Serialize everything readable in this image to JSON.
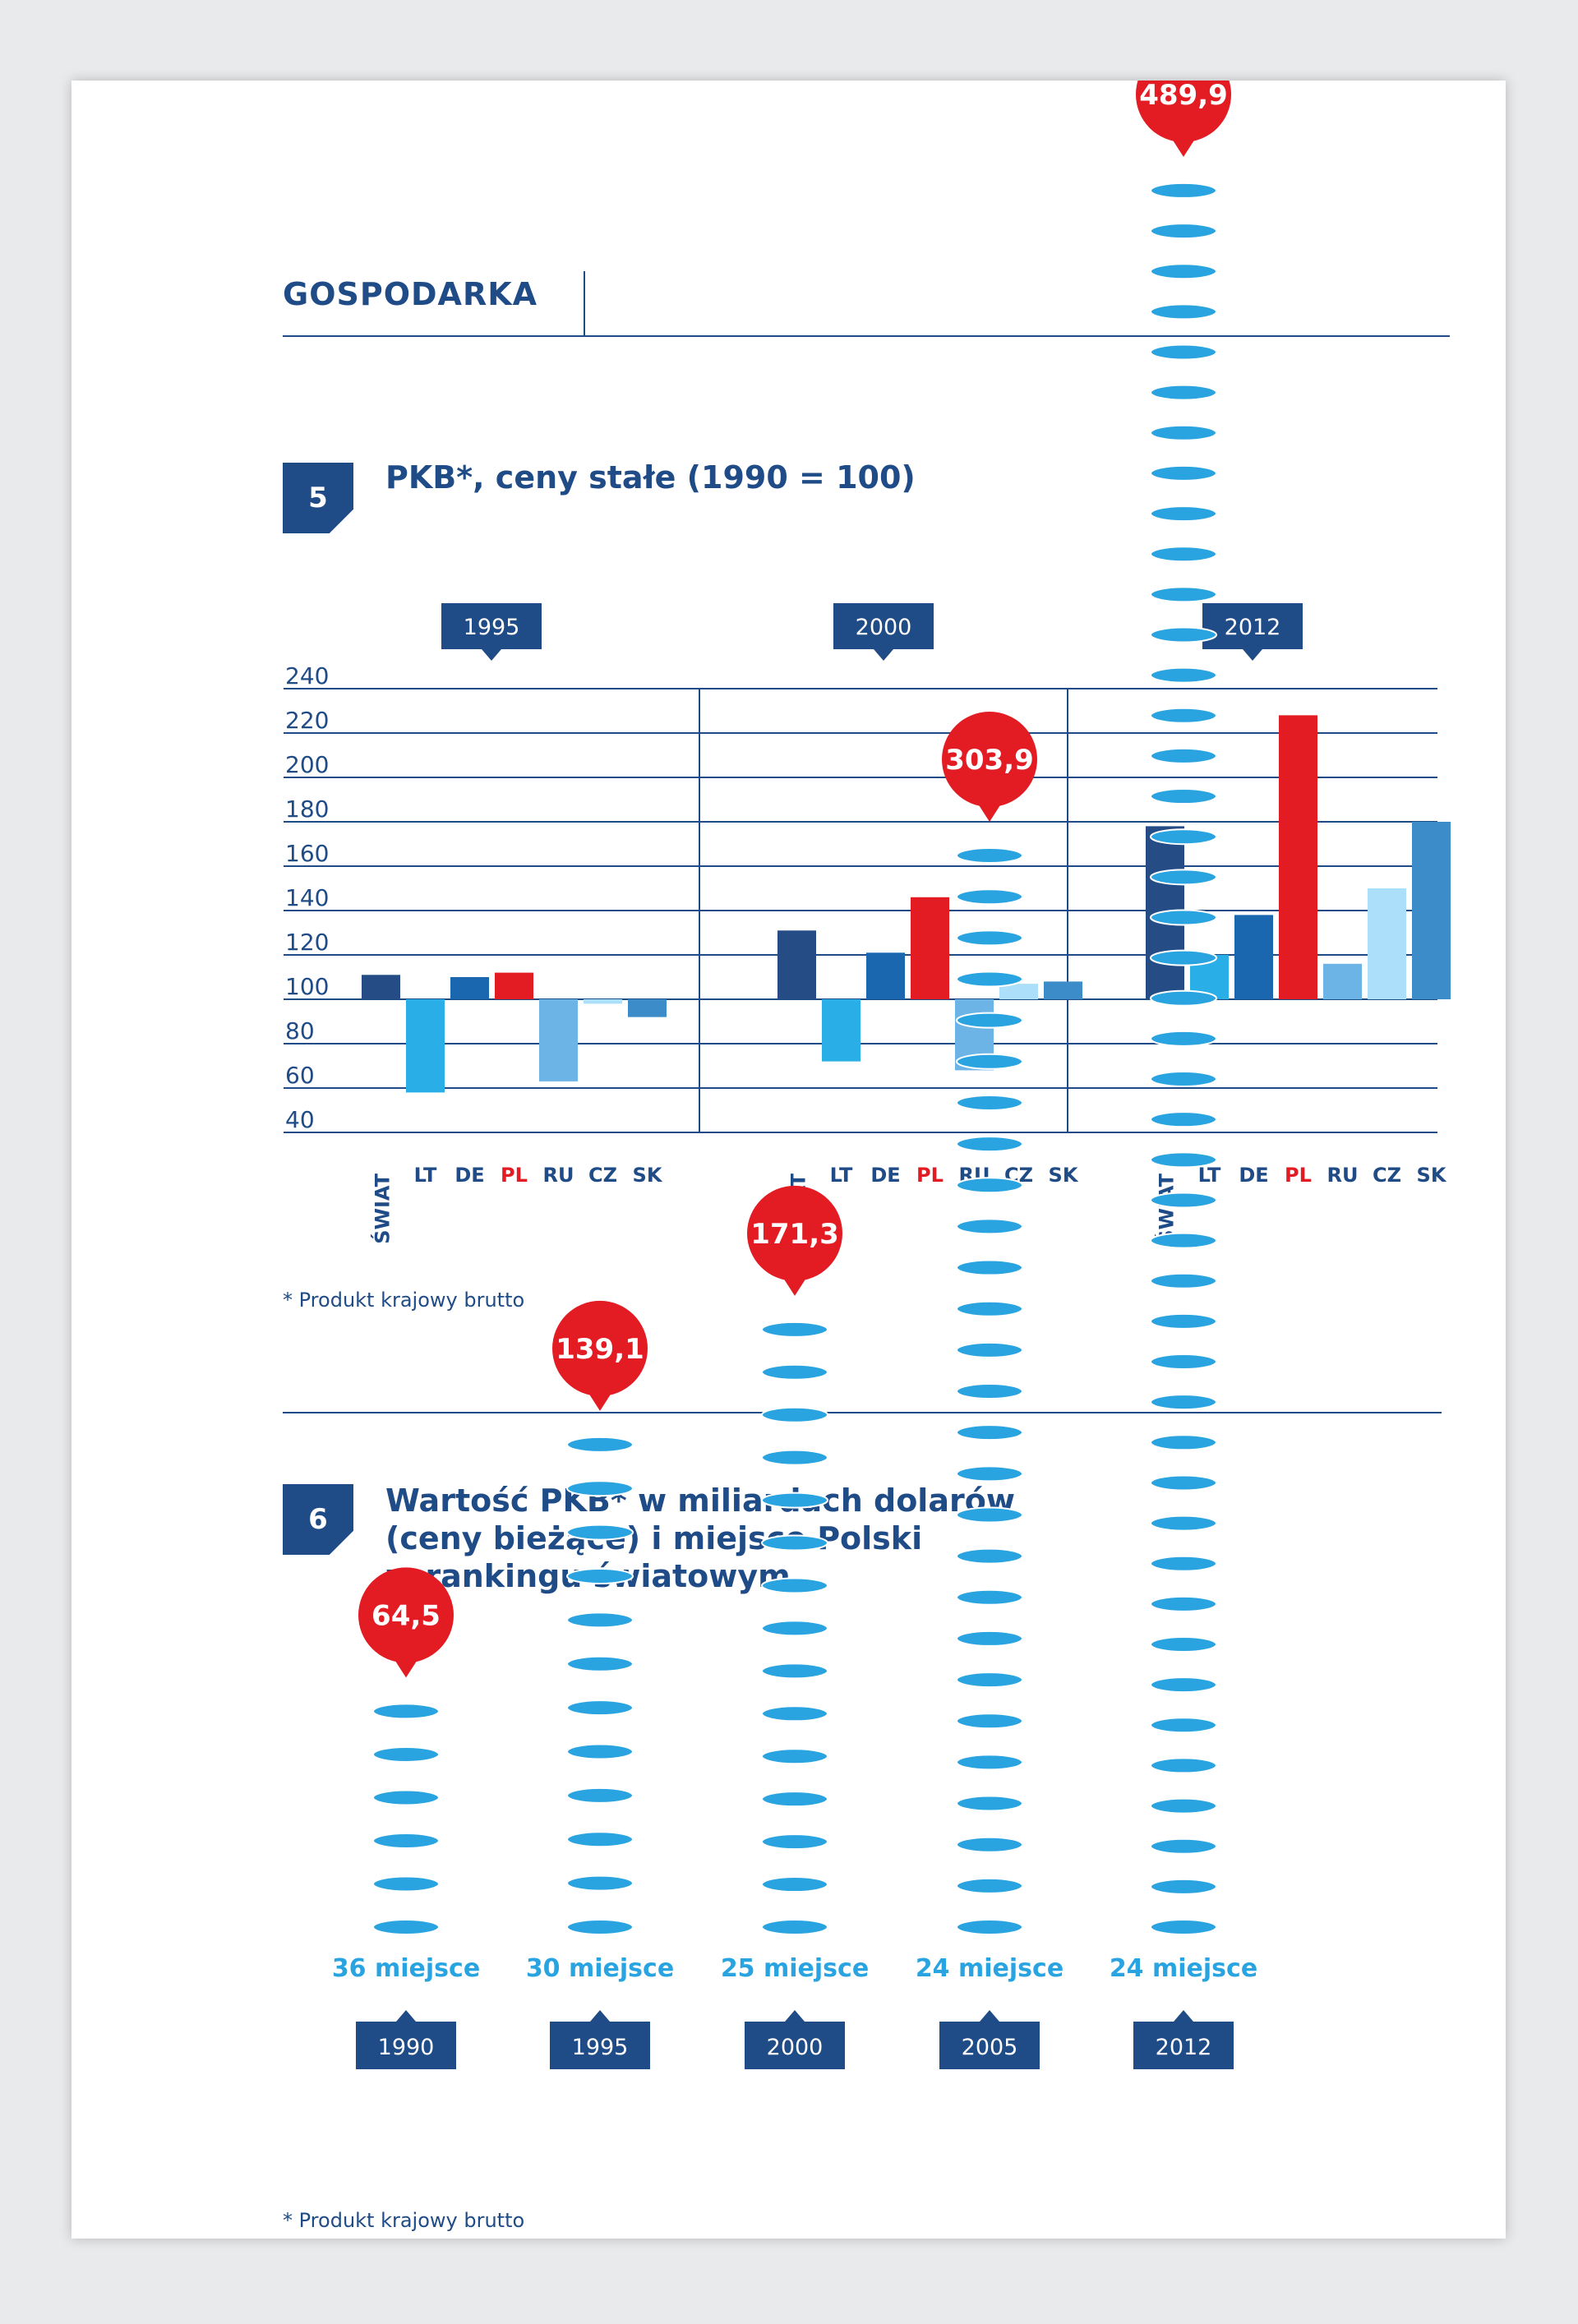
{
  "header": {
    "section_title": "GOSPODARKA"
  },
  "figure5": {
    "number": "5",
    "title": "PKB*, ceny stałe (1990 = 100)",
    "footnote": "* Produkt krajowy brutto"
  },
  "figure6": {
    "number": "6",
    "title_lines": [
      "Wartość PKB* w miliardach dolarów",
      "(ceny bieżące) i miejsce Polski",
      "w rankingu światowym"
    ],
    "footnote": "* Produkt krajowy brutto"
  },
  "colors": {
    "navy": "#1f4b86",
    "red": "#e31b23",
    "series": {
      "ŚWIAT": "#264c85",
      "LT": "#29aee8",
      "DE": "#1a67b0",
      "PL": "#e31b23",
      "RU": "#6cb4e6",
      "CZ": "#ace0fa",
      "SK": "#3b8cc9"
    },
    "coin": "#29a4e0"
  },
  "chart_data": [
    {
      "type": "bar",
      "title": "PKB*, ceny stałe (1990 = 100)",
      "baseline": 100,
      "ylim": [
        40,
        240
      ],
      "yticks": [
        240,
        220,
        200,
        180,
        160,
        140,
        120,
        100,
        80,
        60,
        40
      ],
      "grid": true,
      "categories": [
        "ŚWIAT",
        "LT",
        "DE",
        "PL",
        "RU",
        "CZ",
        "SK"
      ],
      "highlight_category": "PL",
      "groups": [
        {
          "label": "1995",
          "values": [
            111,
            58,
            110,
            112,
            63,
            98,
            92
          ]
        },
        {
          "label": "2000",
          "values": [
            131,
            72,
            121,
            146,
            68,
            107,
            108
          ]
        },
        {
          "label": "2012",
          "values": [
            178,
            120,
            138,
            228,
            116,
            150,
            180
          ]
        }
      ]
    },
    {
      "type": "bar",
      "title": "Wartość PKB* w miliardach dolarów (ceny bieżące) i miejsce Polski w rankingu światowym",
      "categories": [
        "1990",
        "1995",
        "2000",
        "2005",
        "2012"
      ],
      "values": [
        64.5,
        139.1,
        171.3,
        303.9,
        489.9
      ],
      "value_labels": [
        "64,5",
        "139,1",
        "171,3",
        "303,9",
        "489,9"
      ],
      "rank_labels": [
        "36 miejsce",
        "30 miejsce",
        "25 miejsce",
        "24 miejsce",
        "24 miejsce"
      ]
    }
  ]
}
